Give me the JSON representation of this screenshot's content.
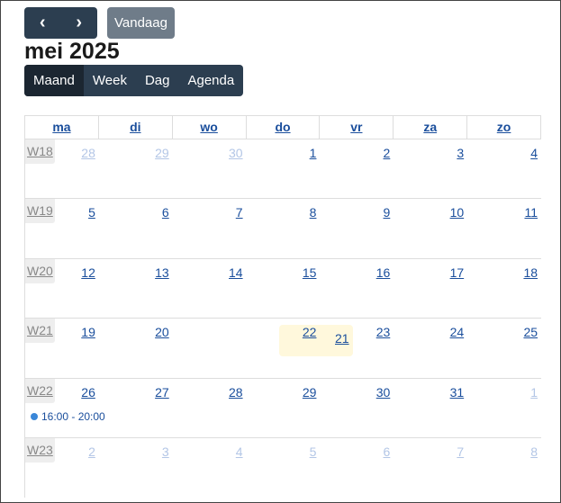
{
  "toolbar": {
    "prev_icon": "chevron-left-icon",
    "next_icon": "chevron-right-icon",
    "prev": "‹",
    "next": "›",
    "today": "Vandaag"
  },
  "title": "mei 2025",
  "views": [
    {
      "label": "Maand",
      "active": true
    },
    {
      "label": "Week"
    },
    {
      "label": "Dag"
    },
    {
      "label": "Agenda"
    }
  ],
  "weekdays": [
    "ma",
    "di",
    "wo",
    "do",
    "vr",
    "za",
    "zo"
  ],
  "weeks": [
    {
      "label": "W18",
      "days": [
        {
          "d": "28",
          "other": true
        },
        {
          "d": "29",
          "other": true
        },
        {
          "d": "30",
          "other": true
        },
        {
          "d": "1"
        },
        {
          "d": "2"
        },
        {
          "d": "3"
        },
        {
          "d": "4"
        }
      ]
    },
    {
      "label": "W19",
      "days": [
        {
          "d": "5"
        },
        {
          "d": "6"
        },
        {
          "d": "7"
        },
        {
          "d": "8"
        },
        {
          "d": "9"
        },
        {
          "d": "10"
        },
        {
          "d": "11"
        }
      ]
    },
    {
      "label": "W20",
      "days": [
        {
          "d": "12"
        },
        {
          "d": "13"
        },
        {
          "d": "14"
        },
        {
          "d": "15"
        },
        {
          "d": "16"
        },
        {
          "d": "17"
        },
        {
          "d": "18"
        }
      ]
    },
    {
      "label": "W21",
      "days": [
        {
          "d": "19"
        },
        {
          "d": "20"
        },
        {
          "d": "21",
          "today": true
        },
        {
          "d": "22"
        },
        {
          "d": "23"
        },
        {
          "d": "24"
        },
        {
          "d": "25"
        }
      ]
    },
    {
      "label": "W22",
      "days": [
        {
          "d": "26"
        },
        {
          "d": "27"
        },
        {
          "d": "28"
        },
        {
          "d": "29"
        },
        {
          "d": "30"
        },
        {
          "d": "31"
        },
        {
          "d": "1",
          "other": true
        }
      ],
      "event": {
        "time": "16:00 - 20:00",
        "color": "#3a87d8"
      }
    },
    {
      "label": "W23",
      "days": [
        {
          "d": "2",
          "other": true
        },
        {
          "d": "3",
          "other": true
        },
        {
          "d": "4",
          "other": true
        },
        {
          "d": "5",
          "other": true
        },
        {
          "d": "6",
          "other": true
        },
        {
          "d": "7",
          "other": true
        },
        {
          "d": "8",
          "other": true
        }
      ]
    }
  ],
  "colors": {
    "primary": "#2c3e50",
    "today_bg": "#fff8dc",
    "link": "#1a4e9c"
  }
}
